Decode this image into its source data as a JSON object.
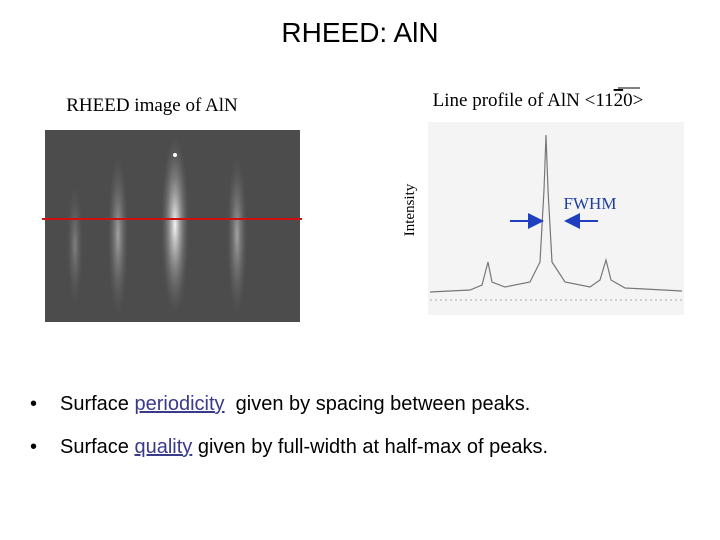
{
  "header": {
    "title": "RHEED: AlN"
  },
  "left_panel": {
    "caption": "RHEED image of AlN"
  },
  "right_panel": {
    "caption_parts": [
      "Line profile of AlN <11",
      "2",
      "0>"
    ],
    "y_axis_label": "Intensity",
    "annotation": "FWHM"
  },
  "bullets": [
    {
      "parts": [
        "Surface ",
        "periodicity",
        "  given by spacing between peaks."
      ]
    },
    {
      "parts": [
        "Surface ",
        "quality",
        " given by full-width at half-max of peaks."
      ]
    }
  ]
}
